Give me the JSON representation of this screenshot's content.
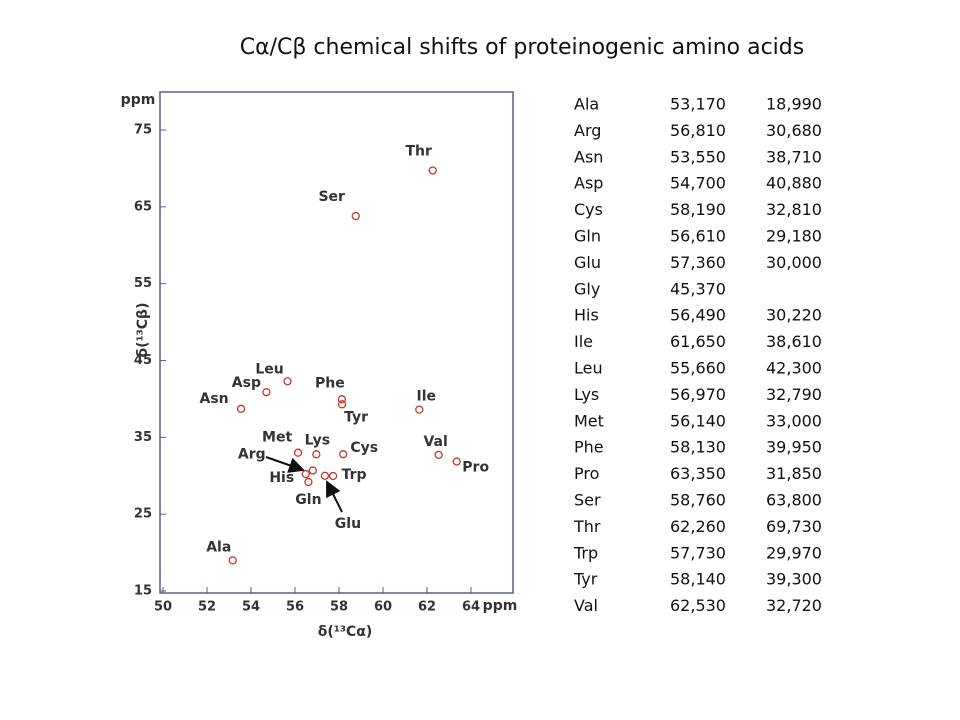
{
  "chart_data": {
    "type": "scatter",
    "title": "Cα/Cβ chemical shifts of proteinogenic amino acids",
    "x_label": "δ(¹³Cα)",
    "y_label": "δ(¹³Cβ)",
    "x_unit": "ppm",
    "y_unit": "ppm",
    "color": "#c0392b",
    "labels": [
      "Ala",
      "Arg",
      "Asn",
      "Asp",
      "Cys",
      "Gln",
      "Glu",
      "His",
      "Ile",
      "Leu",
      "Lys",
      "Met",
      "Phe",
      "Pro",
      "Ser",
      "Thr",
      "Trp",
      "Tyr",
      "Val"
    ],
    "x": [
      53.17,
      56.81,
      53.55,
      54.7,
      58.19,
      56.61,
      57.36,
      56.49,
      61.65,
      55.66,
      56.97,
      56.14,
      58.13,
      63.35,
      58.76,
      62.26,
      57.73,
      58.14,
      62.53
    ],
    "values": [
      18.99,
      30.68,
      38.71,
      40.88,
      32.81,
      29.18,
      30.0,
      30.22,
      38.61,
      42.3,
      32.79,
      33.0,
      39.95,
      31.85,
      63.8,
      69.73,
      29.97,
      39.3,
      32.72
    ],
    "xlim": [
      50,
      66
    ],
    "ylim": [
      15,
      80
    ],
    "xticks": [
      50,
      52,
      54,
      56,
      58,
      60,
      62,
      64
    ],
    "yticks": [
      15,
      25,
      35,
      45,
      55,
      65,
      75
    ]
  },
  "table": {
    "rows": [
      [
        "Ala",
        "53,170",
        "18,990"
      ],
      [
        "Arg",
        "56,810",
        "30,680"
      ],
      [
        "Asn",
        "53,550",
        "38,710"
      ],
      [
        "Asp",
        "54,700",
        "40,880"
      ],
      [
        "Cys",
        "58,190",
        "32,810"
      ],
      [
        "Gln",
        "56,610",
        "29,180"
      ],
      [
        "Glu",
        "57,360",
        "30,000"
      ],
      [
        "Gly",
        "45,370"
      ],
      [
        "His",
        "56,490",
        "30,220"
      ],
      [
        "Ile",
        "61,650",
        "38,610"
      ],
      [
        "Leu",
        "55,660",
        "42,300"
      ],
      [
        "Lys",
        "56,970",
        "32,790"
      ],
      [
        "Met",
        "56,140",
        "33,000"
      ],
      [
        "Phe",
        "58,130",
        "39,950"
      ],
      [
        "Pro",
        "63,350",
        "31,850"
      ],
      [
        "Ser",
        "58,760",
        "63,800"
      ],
      [
        "Thr",
        "62,260",
        "69,730"
      ],
      [
        "Trp",
        "57,730",
        "29,970"
      ],
      [
        "Tyr",
        "58,140",
        "39,300"
      ],
      [
        "Val",
        "62,530",
        "32,720"
      ]
    ]
  }
}
